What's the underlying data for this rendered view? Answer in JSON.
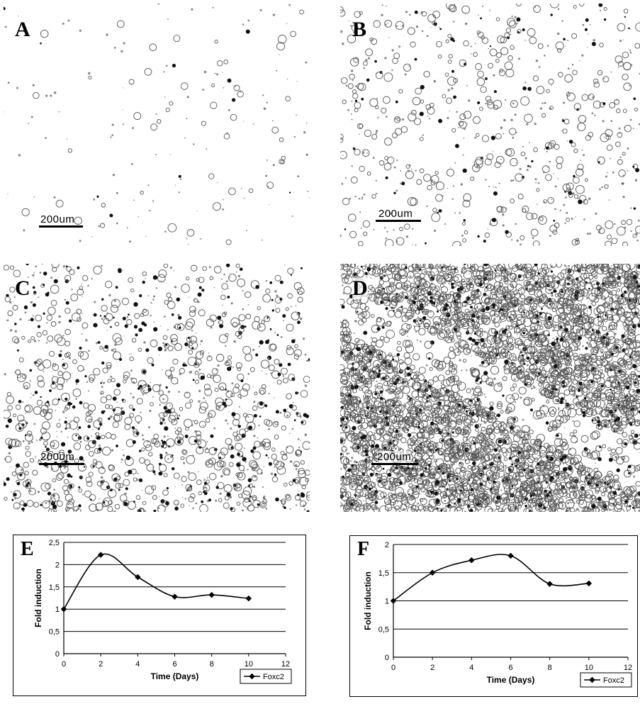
{
  "panels": [
    {
      "label": "A",
      "scale": "200um"
    },
    {
      "label": "B",
      "scale": "200um"
    },
    {
      "label": "C",
      "scale": "200um"
    },
    {
      "label": "D",
      "scale": "200um"
    }
  ],
  "chart_data": [
    {
      "panel": "E",
      "type": "line",
      "xlabel": "Time (Days)",
      "ylabel": "Fold induction",
      "xlim": [
        0,
        12
      ],
      "ylim": [
        0,
        2.5
      ],
      "xticks": [
        "0",
        "2",
        "4",
        "6",
        "8",
        "10",
        "12"
      ],
      "yticks": [
        "0",
        "0,5",
        "1",
        "1,5",
        "2",
        "2,5"
      ],
      "series": [
        {
          "name": "Foxc2",
          "x": [
            0,
            2,
            4,
            6,
            8,
            10
          ],
          "y": [
            1.0,
            2.22,
            1.72,
            1.28,
            1.32,
            1.24
          ]
        }
      ],
      "grid": "horizontal",
      "legend": "bottom-right"
    },
    {
      "panel": "F",
      "type": "line",
      "xlabel": "Time (Days)",
      "ylabel": "Fold induction",
      "xlim": [
        0,
        12
      ],
      "ylim": [
        0,
        2
      ],
      "xticks": [
        "0",
        "2",
        "4",
        "6",
        "8",
        "10",
        "12"
      ],
      "yticks": [
        "0",
        "0,5",
        "1",
        "1,5",
        "2"
      ],
      "series": [
        {
          "name": "Foxc2",
          "x": [
            0,
            2,
            4,
            6,
            8,
            10
          ],
          "y": [
            1.0,
            1.5,
            1.72,
            1.8,
            1.3,
            1.31
          ]
        }
      ],
      "grid": "horizontal",
      "legend": "bottom-right"
    }
  ]
}
